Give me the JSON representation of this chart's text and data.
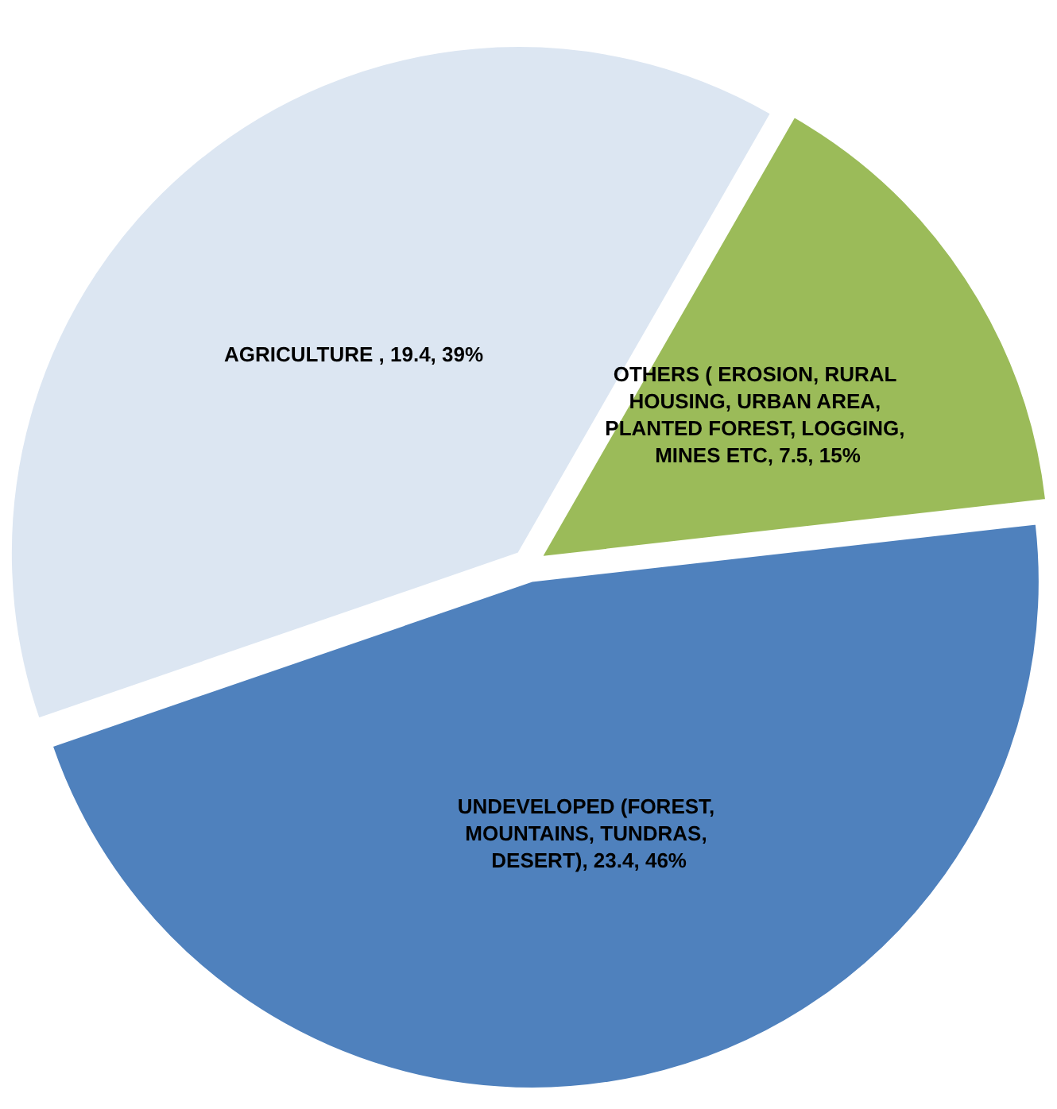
{
  "chart_data": {
    "type": "pie",
    "categories": [
      "AGRICULTURE ",
      "OTHERS ( EROSION, RURAL HOUSING, URBAN AREA, PLANTED FOREST, LOGGING, MINES ETC",
      "UNDEVELOPED (FOREST, MOUNTAINS, TUNDRAS, DESERT)"
    ],
    "values": [
      19.4,
      7.5,
      23.4
    ],
    "value_labels": [
      "19.4, 39%",
      "7.5, 15%",
      "23.4, 46%"
    ],
    "colors": [
      "#dce6f2",
      "#9bbb59",
      "#4f81bd"
    ],
    "legend": false
  }
}
